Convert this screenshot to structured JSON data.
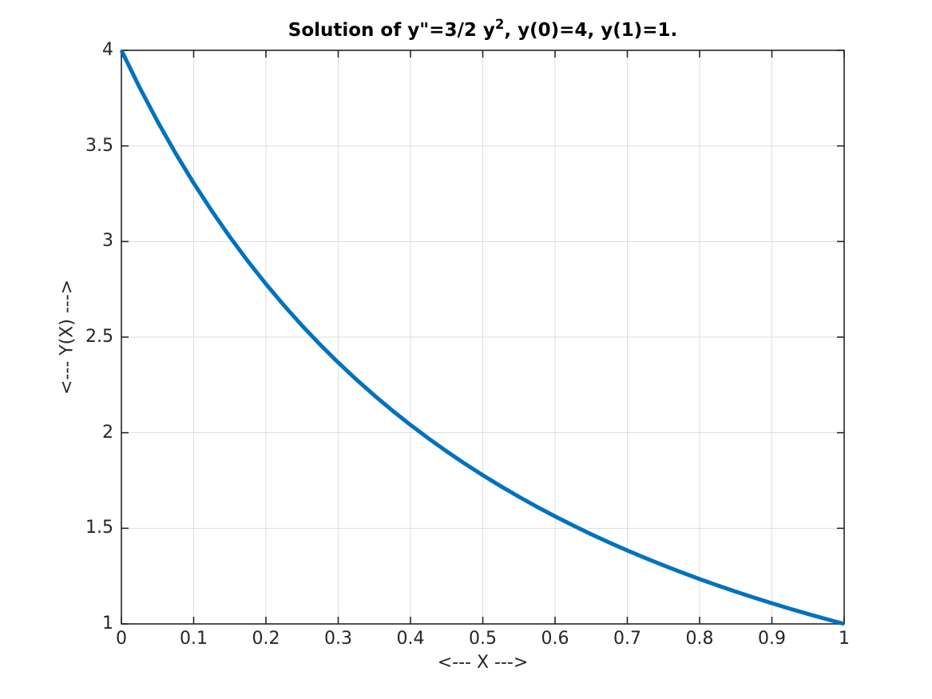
{
  "figure": {
    "background": "#ffffff"
  },
  "chart_data": {
    "type": "line",
    "title": {
      "pre": "Solution of y\"=3/2 y",
      "sup": "2",
      "post": ", y(0)=4, y(1)=1."
    },
    "xlabel": "<--- X --->",
    "ylabel": "<--- Y(X) --->",
    "xlim": [
      0,
      1
    ],
    "ylim": [
      1,
      4
    ],
    "xticks": [
      0,
      0.1,
      0.2,
      0.3,
      0.4,
      0.5,
      0.6,
      0.7,
      0.8,
      0.9,
      1
    ],
    "xtick_labels": [
      "0",
      "0.1",
      "0.2",
      "0.3",
      "0.4",
      "0.5",
      "0.6",
      "0.7",
      "0.8",
      "0.9",
      "1"
    ],
    "yticks": [
      1,
      1.5,
      2,
      2.5,
      3,
      3.5,
      4
    ],
    "ytick_labels": [
      "1",
      "1.5",
      "2",
      "2.5",
      "3",
      "3.5",
      "4"
    ],
    "grid": true,
    "legend": false,
    "axis_color": "#262626",
    "grid_color": "#dedede",
    "series": [
      {
        "color": "#0072BD",
        "line_width": 5,
        "x": [
          0,
          0.025,
          0.05,
          0.075,
          0.1,
          0.125,
          0.15,
          0.175,
          0.2,
          0.225,
          0.25,
          0.275,
          0.3,
          0.325,
          0.35,
          0.375,
          0.4,
          0.425,
          0.45,
          0.475,
          0.5,
          0.525,
          0.55,
          0.575,
          0.6,
          0.625,
          0.65,
          0.675,
          0.7,
          0.725,
          0.75,
          0.775,
          0.8,
          0.825,
          0.85,
          0.875,
          0.9,
          0.925,
          0.95,
          0.975,
          1
        ],
        "y": [
          4.0,
          3.8073,
          3.6281,
          3.4613,
          3.3058,
          3.1605,
          3.0246,
          2.8972,
          2.7778,
          2.6656,
          2.56,
          2.4606,
          2.3669,
          2.2784,
          2.1948,
          2.1157,
          2.0408,
          1.9698,
          1.9025,
          1.8386,
          1.7778,
          1.72,
          1.6649,
          1.6125,
          1.5625,
          1.5148,
          1.4692,
          1.4257,
          1.3841,
          1.3443,
          1.3061,
          1.2696,
          1.2346,
          1.201,
          1.1687,
          1.1378,
          1.108,
          1.0794,
          1.0519,
          1.0255,
          1.0
        ]
      }
    ]
  }
}
